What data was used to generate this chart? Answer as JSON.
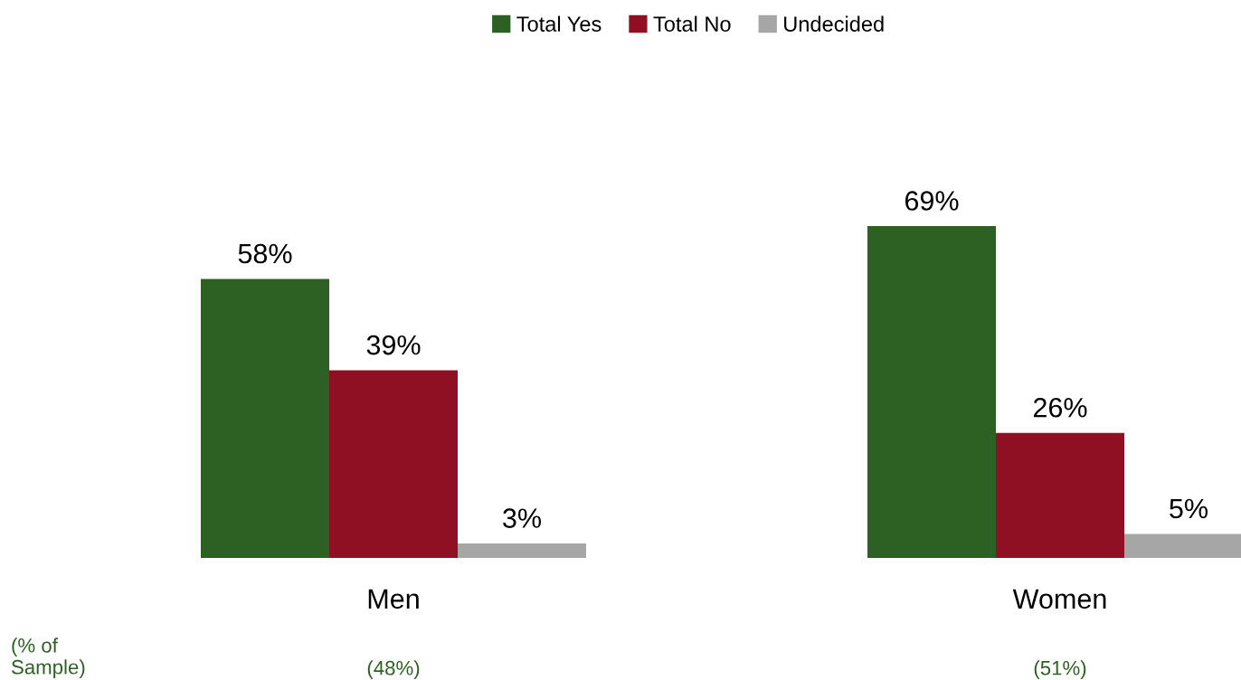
{
  "chart_data": {
    "type": "bar",
    "categories": [
      "Men",
      "Women"
    ],
    "series": [
      {
        "name": "Total Yes",
        "color": "#2d6023",
        "values": [
          58,
          69
        ],
        "value_labels": [
          "58%",
          "69%"
        ]
      },
      {
        "name": "Total No",
        "color": "#8f1022",
        "values": [
          39,
          26
        ],
        "value_labels": [
          "39%",
          "26%"
        ]
      },
      {
        "name": "Undecided",
        "color": "#a6a6a6",
        "values": [
          3,
          5
        ],
        "value_labels": [
          "3%",
          "5%"
        ]
      }
    ],
    "legend": "top",
    "annotations": [
      "(% of\nSample)",
      "(48%)",
      "(51%)"
    ]
  }
}
